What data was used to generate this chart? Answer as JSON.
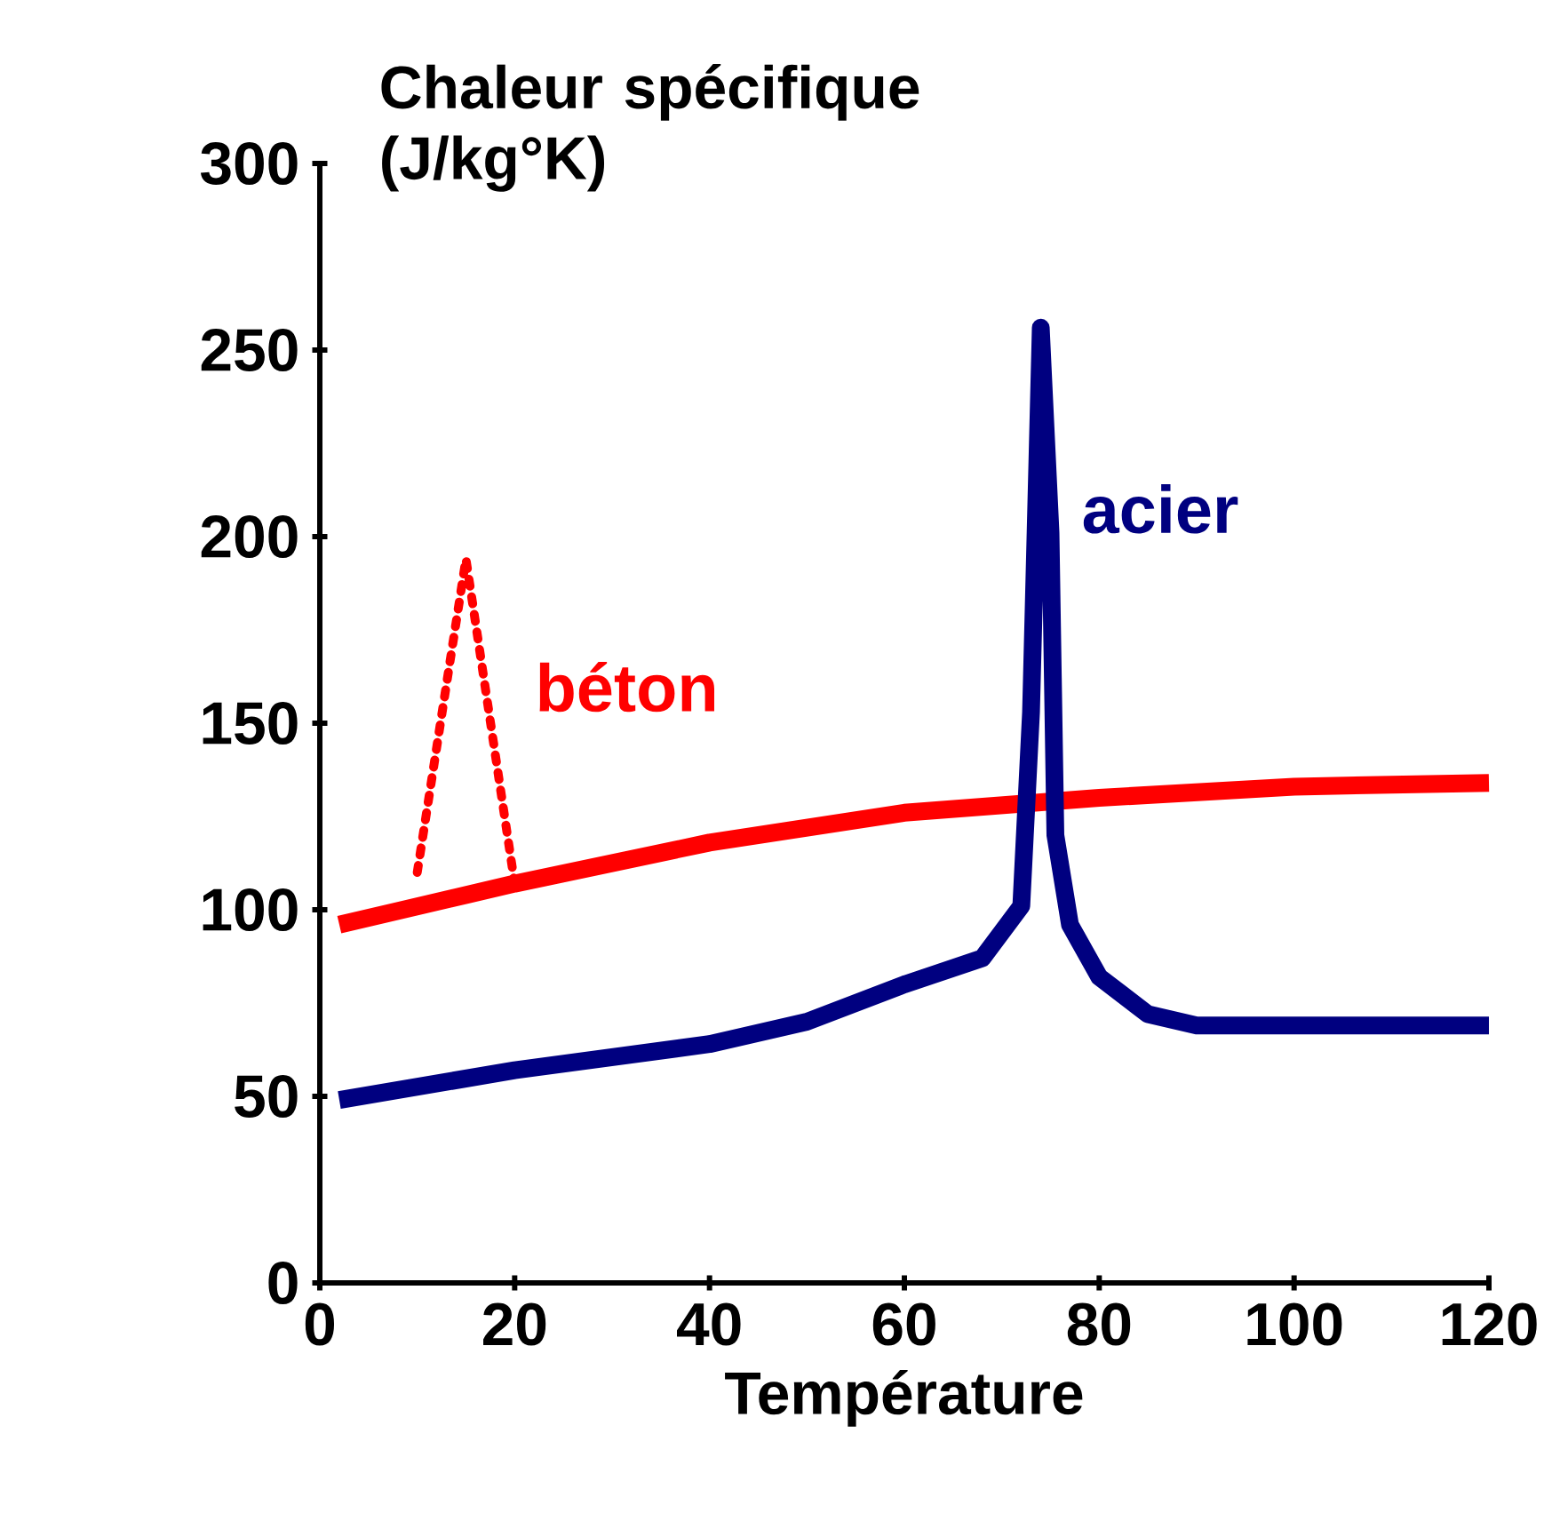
{
  "chart_data": {
    "type": "line",
    "ylabel": "Chaleur spécifique (J/kg°K)",
    "xlabel": "Température",
    "xlim": [
      0,
      120
    ],
    "ylim": [
      0,
      300
    ],
    "xticks": [
      0,
      20,
      40,
      60,
      80,
      100,
      120
    ],
    "yticks": [
      0,
      50,
      100,
      150,
      200,
      250,
      300
    ],
    "marker": "none",
    "series": [
      {
        "color": "#ff0000",
        "line_style": "solid",
        "x": [
          2,
          20,
          40,
          60,
          80,
          100,
          120
        ],
        "values": [
          96,
          107,
          118,
          126,
          130,
          133,
          134
        ]
      },
      {
        "name": "béton",
        "color": "#ff0000",
        "line_style": "dotted",
        "x": [
          10,
          15,
          20
        ],
        "values": [
          110,
          194,
          107
        ]
      },
      {
        "name": "acier",
        "color": "#000080",
        "line_style": "solid",
        "x": [
          2,
          20,
          40,
          50,
          60,
          68,
          72,
          73,
          74,
          75,
          75.5,
          77,
          80,
          85,
          90,
          120
        ],
        "values": [
          49,
          57,
          64,
          70,
          80,
          87,
          101,
          153,
          256,
          201,
          120,
          96,
          82,
          72,
          69,
          69
        ]
      }
    ]
  }
}
